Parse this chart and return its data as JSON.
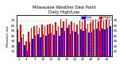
{
  "title1": "Milwaukee Weather Dew Point",
  "title2": "Daily High/Low",
  "ylabel_left": "Milwaukee dew",
  "bar_width": 0.45,
  "background_color": "#ffffff",
  "plot_bg_color": "#ffffff",
  "highs": [
    52,
    62,
    44,
    30,
    48,
    55,
    58,
    60,
    56,
    62,
    58,
    62,
    64,
    62,
    66,
    58,
    72,
    68,
    72,
    62,
    68,
    65,
    62,
    70,
    68,
    72,
    64,
    66,
    70,
    72,
    68,
    72,
    70,
    74,
    76
  ],
  "lows": [
    28,
    38,
    22,
    12,
    28,
    34,
    40,
    44,
    38,
    44,
    40,
    44,
    46,
    42,
    50,
    40,
    55,
    50,
    55,
    44,
    50,
    48,
    44,
    52,
    50,
    54,
    46,
    48,
    52,
    54,
    50,
    54,
    52,
    56,
    58
  ],
  "high_color": "#ff0000",
  "low_color": "#0000ff",
  "grid_color": "#cccccc",
  "dashed_line_color": "#aaaaaa",
  "dashed_lines": [
    27,
    28
  ],
  "ylim": [
    0,
    80
  ],
  "yticks": [
    10,
    20,
    30,
    40,
    50,
    60,
    70
  ],
  "tick_fontsize": 3.0,
  "title_fontsize": 3.8,
  "legend_fontsize": 3.2
}
